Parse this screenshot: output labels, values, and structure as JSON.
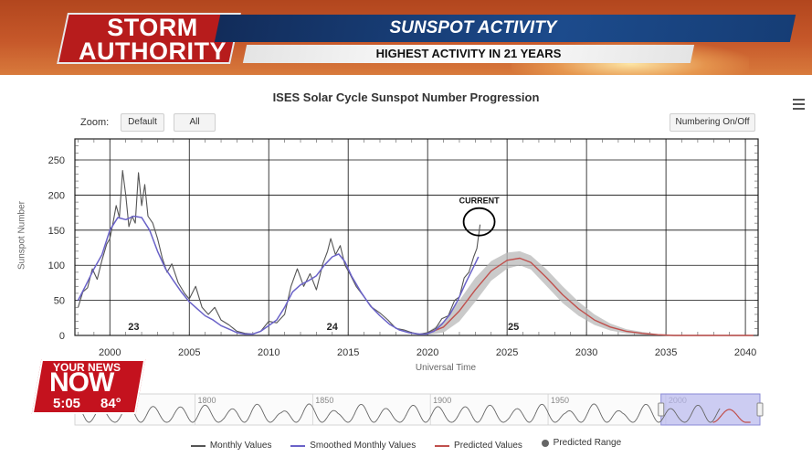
{
  "broadcast": {
    "station_line1": "STORM",
    "station_line2": "AUTHORITY",
    "headline": "SUNSPOT ACTIVITY",
    "subheadline": "HIGHEST ACTIVITY IN 21 YEARS",
    "bug_top": "YOUR NEWS",
    "bug_main": "NOW",
    "time": "5:05",
    "temperature": "84°"
  },
  "toolbar": {
    "zoom_label": "Zoom:",
    "default_label": "Default",
    "all_label": "All",
    "numbering_label": "Numbering On/Off"
  },
  "chart_data": {
    "type": "line",
    "title": "ISES Solar Cycle Sunspot Number Progression",
    "xlabel": "Universal Time",
    "ylabel": "Sunspot Number",
    "xlim": [
      1997.8,
      2040.8
    ],
    "ylim": [
      0,
      280
    ],
    "x_ticks": [
      "2000",
      "2005",
      "2010",
      "2015",
      "2020",
      "2025",
      "2030",
      "2035",
      "2040"
    ],
    "y_ticks": [
      "0",
      "50",
      "100",
      "150",
      "200",
      "250"
    ],
    "annotation": "CURRENT",
    "cycle_labels": [
      {
        "label": "23",
        "x": 2001.5
      },
      {
        "label": "24",
        "x": 2014.0
      },
      {
        "label": "25",
        "x": 2025.4
      }
    ],
    "series": [
      {
        "name": "Monthly Values",
        "color": "#555555",
        "points": [
          [
            1998.0,
            40
          ],
          [
            1998.3,
            62
          ],
          [
            1998.6,
            68
          ],
          [
            1998.9,
            95
          ],
          [
            1999.2,
            80
          ],
          [
            1999.5,
            107
          ],
          [
            1999.8,
            130
          ],
          [
            2000.0,
            138
          ],
          [
            2000.2,
            160
          ],
          [
            2000.4,
            185
          ],
          [
            2000.6,
            168
          ],
          [
            2000.8,
            235
          ],
          [
            2001.0,
            200
          ],
          [
            2001.2,
            155
          ],
          [
            2001.4,
            170
          ],
          [
            2001.6,
            160
          ],
          [
            2001.8,
            232
          ],
          [
            2002.0,
            185
          ],
          [
            2002.2,
            215
          ],
          [
            2002.4,
            170
          ],
          [
            2002.7,
            160
          ],
          [
            2003.0,
            138
          ],
          [
            2003.3,
            110
          ],
          [
            2003.6,
            90
          ],
          [
            2003.9,
            102
          ],
          [
            2004.3,
            75
          ],
          [
            2004.7,
            60
          ],
          [
            2005.0,
            52
          ],
          [
            2005.4,
            70
          ],
          [
            2005.8,
            40
          ],
          [
            2006.2,
            30
          ],
          [
            2006.6,
            40
          ],
          [
            2007.0,
            22
          ],
          [
            2007.5,
            15
          ],
          [
            2008.0,
            6
          ],
          [
            2008.5,
            3
          ],
          [
            2009.0,
            2
          ],
          [
            2009.5,
            6
          ],
          [
            2010.0,
            20
          ],
          [
            2010.5,
            18
          ],
          [
            2011.0,
            30
          ],
          [
            2011.4,
            70
          ],
          [
            2011.8,
            95
          ],
          [
            2012.2,
            70
          ],
          [
            2012.6,
            88
          ],
          [
            2013.0,
            65
          ],
          [
            2013.4,
            102
          ],
          [
            2013.7,
            120
          ],
          [
            2013.9,
            138
          ],
          [
            2014.2,
            115
          ],
          [
            2014.5,
            128
          ],
          [
            2014.8,
            100
          ],
          [
            2015.1,
            88
          ],
          [
            2015.5,
            70
          ],
          [
            2016.0,
            55
          ],
          [
            2016.5,
            40
          ],
          [
            2017.0,
            32
          ],
          [
            2017.5,
            22
          ],
          [
            2018.0,
            10
          ],
          [
            2018.5,
            8
          ],
          [
            2019.0,
            4
          ],
          [
            2019.5,
            2
          ],
          [
            2020.0,
            4
          ],
          [
            2020.5,
            10
          ],
          [
            2020.9,
            24
          ],
          [
            2021.3,
            28
          ],
          [
            2021.7,
            50
          ],
          [
            2022.0,
            55
          ],
          [
            2022.3,
            82
          ],
          [
            2022.6,
            90
          ],
          [
            2022.9,
            112
          ],
          [
            2023.1,
            124
          ],
          [
            2023.3,
            158
          ]
        ]
      },
      {
        "name": "Smoothed Monthly Values",
        "color": "#6a62c8",
        "points": [
          [
            1998.0,
            50
          ],
          [
            1998.5,
            72
          ],
          [
            1999.0,
            95
          ],
          [
            1999.5,
            115
          ],
          [
            2000.0,
            150
          ],
          [
            2000.5,
            168
          ],
          [
            2001.0,
            165
          ],
          [
            2001.5,
            170
          ],
          [
            2002.0,
            168
          ],
          [
            2002.5,
            150
          ],
          [
            2003.0,
            120
          ],
          [
            2003.5,
            95
          ],
          [
            2004.0,
            78
          ],
          [
            2004.5,
            62
          ],
          [
            2005.0,
            48
          ],
          [
            2005.5,
            38
          ],
          [
            2006.0,
            28
          ],
          [
            2006.5,
            22
          ],
          [
            2007.0,
            14
          ],
          [
            2007.5,
            9
          ],
          [
            2008.0,
            4
          ],
          [
            2008.5,
            2
          ],
          [
            2009.0,
            2
          ],
          [
            2009.5,
            6
          ],
          [
            2010.0,
            14
          ],
          [
            2010.5,
            22
          ],
          [
            2011.0,
            40
          ],
          [
            2011.5,
            62
          ],
          [
            2012.0,
            72
          ],
          [
            2012.5,
            78
          ],
          [
            2013.0,
            85
          ],
          [
            2013.5,
            100
          ],
          [
            2014.0,
            112
          ],
          [
            2014.4,
            116
          ],
          [
            2014.8,
            105
          ],
          [
            2015.2,
            85
          ],
          [
            2015.8,
            62
          ],
          [
            2016.4,
            42
          ],
          [
            2017.0,
            28
          ],
          [
            2017.6,
            16
          ],
          [
            2018.2,
            8
          ],
          [
            2018.8,
            4
          ],
          [
            2019.4,
            2
          ],
          [
            2019.9,
            2
          ],
          [
            2020.4,
            6
          ],
          [
            2020.9,
            16
          ],
          [
            2021.4,
            30
          ],
          [
            2021.9,
            50
          ],
          [
            2022.4,
            75
          ],
          [
            2022.9,
            98
          ],
          [
            2023.2,
            112
          ]
        ]
      },
      {
        "name": "Predicted Values",
        "color": "#c0504d",
        "points": [
          [
            2020.0,
            3
          ],
          [
            2021.0,
            12
          ],
          [
            2022.0,
            35
          ],
          [
            2023.0,
            65
          ],
          [
            2024.0,
            92
          ],
          [
            2025.0,
            107
          ],
          [
            2025.8,
            110
          ],
          [
            2026.5,
            104
          ],
          [
            2027.5,
            82
          ],
          [
            2028.5,
            58
          ],
          [
            2029.5,
            38
          ],
          [
            2030.5,
            22
          ],
          [
            2031.5,
            12
          ],
          [
            2032.5,
            6
          ],
          [
            2033.5,
            3
          ],
          [
            2034.5,
            1
          ],
          [
            2035.5,
            0
          ],
          [
            2040.5,
            0
          ]
        ]
      },
      {
        "name": "Predicted Range",
        "color": "#999999",
        "lower": [
          [
            2020.0,
            1
          ],
          [
            2021.0,
            4
          ],
          [
            2022.0,
            20
          ],
          [
            2023.0,
            48
          ],
          [
            2024.0,
            78
          ],
          [
            2025.0,
            95
          ],
          [
            2025.8,
            100
          ],
          [
            2026.5,
            94
          ],
          [
            2027.5,
            70
          ],
          [
            2028.5,
            46
          ],
          [
            2029.5,
            28
          ],
          [
            2030.5,
            15
          ],
          [
            2031.5,
            7
          ],
          [
            2032.5,
            3
          ],
          [
            2033.5,
            1
          ],
          [
            2034.5,
            0
          ],
          [
            2035.5,
            0
          ],
          [
            2040.5,
            0
          ]
        ],
        "upper": [
          [
            2020.0,
            5
          ],
          [
            2021.0,
            20
          ],
          [
            2022.0,
            50
          ],
          [
            2023.0,
            82
          ],
          [
            2024.0,
            106
          ],
          [
            2025.0,
            118
          ],
          [
            2025.8,
            120
          ],
          [
            2026.5,
            114
          ],
          [
            2027.5,
            94
          ],
          [
            2028.5,
            70
          ],
          [
            2029.5,
            48
          ],
          [
            2030.5,
            30
          ],
          [
            2031.5,
            17
          ],
          [
            2032.5,
            9
          ],
          [
            2033.5,
            5
          ],
          [
            2034.5,
            2
          ],
          [
            2035.5,
            1
          ],
          [
            2040.5,
            0
          ]
        ]
      }
    ],
    "navigator": {
      "range": [
        1749,
        2040
      ],
      "ticks": [
        "1800",
        "1850",
        "1900",
        "1950",
        "2000"
      ],
      "selected_range": [
        1998,
        2040
      ]
    },
    "legend": [
      "Monthly Values",
      "Smoothed Monthly Values",
      "Predicted Values",
      "Predicted Range"
    ]
  }
}
